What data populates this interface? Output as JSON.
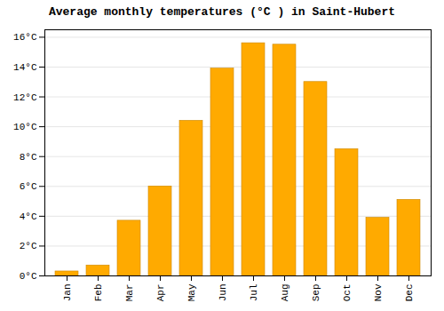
{
  "chart_data": {
    "type": "bar",
    "title": "Average monthly temperatures (°C ) in Saint-Hubert",
    "categories": [
      "Jan",
      "Feb",
      "Mar",
      "Apr",
      "May",
      "Jun",
      "Jul",
      "Aug",
      "Sep",
      "Oct",
      "Nov",
      "Dec"
    ],
    "values": [
      0.3,
      0.7,
      3.7,
      6.0,
      10.4,
      13.9,
      15.6,
      15.5,
      13.0,
      8.5,
      3.9,
      5.1
    ],
    "color": "#FFAA00",
    "ylim": [
      0,
      16.5
    ],
    "yticks": [
      {
        "value": 0,
        "label": "0°C"
      },
      {
        "value": 2,
        "label": "2°C"
      },
      {
        "value": 4,
        "label": "4°C"
      },
      {
        "value": 6,
        "label": "6°C"
      },
      {
        "value": 8,
        "label": "8°C"
      },
      {
        "value": 10,
        "label": "10°C"
      },
      {
        "value": 12,
        "label": "12°C"
      },
      {
        "value": 14,
        "label": "14°C"
      },
      {
        "value": 16,
        "label": "16°C"
      }
    ],
    "grid": true
  }
}
